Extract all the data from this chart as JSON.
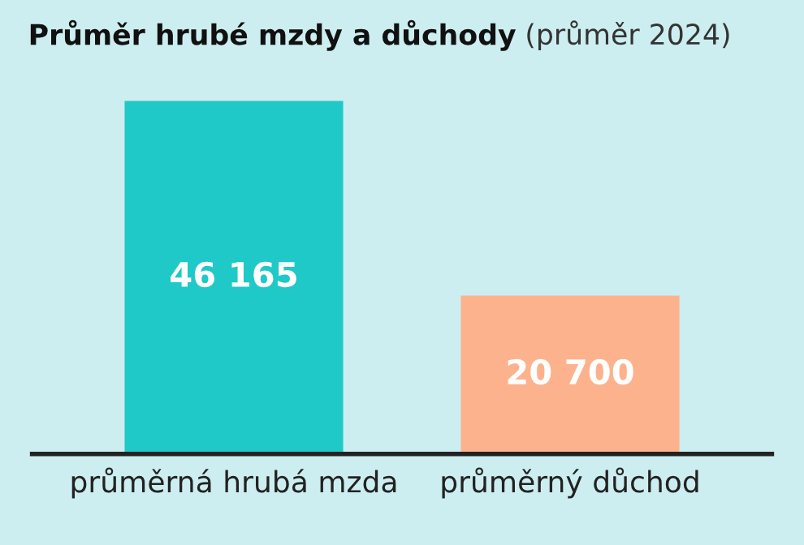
{
  "chart_data": {
    "type": "bar",
    "title": "Průměr hrubé mzdy a důchody",
    "subtitle": "(průměr 2024)",
    "categories": [
      "průměrná hrubá mzda",
      "průměrný důchod"
    ],
    "values": [
      46165,
      20700
    ],
    "colors": [
      "#1fc9c7",
      "#fdb28e"
    ],
    "value_labels": [
      "46 165",
      "20 700"
    ],
    "grid": false,
    "legend": false
  }
}
